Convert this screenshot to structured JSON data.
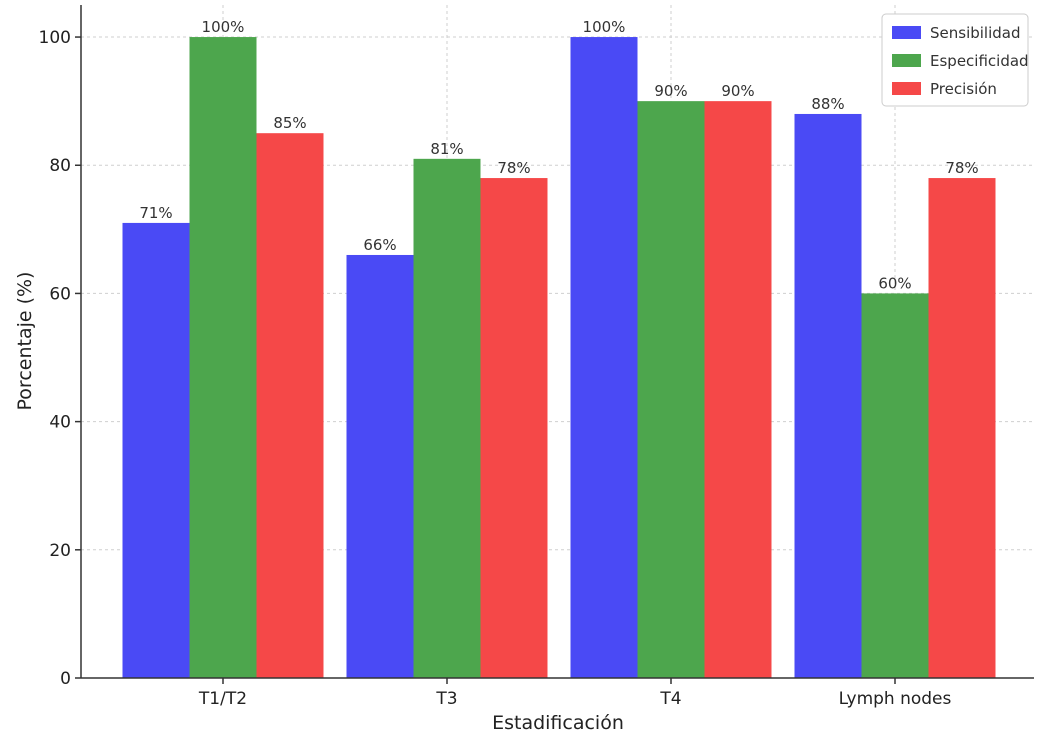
{
  "chart_data": {
    "type": "bar",
    "title": "",
    "xlabel": "Estadificación",
    "ylabel": "Porcentaje (%)",
    "categories": [
      "T1/T2",
      "T3",
      "T4",
      "Lymph nodes"
    ],
    "series": [
      {
        "name": "Sensibilidad",
        "values": [
          71,
          66,
          100,
          88
        ],
        "color": "#4a4af5"
      },
      {
        "name": "Especificidad",
        "values": [
          100,
          81,
          90,
          60
        ],
        "color": "#4da64d"
      },
      {
        "name": "Precisión",
        "values": [
          85,
          78,
          90,
          78
        ],
        "color": "#f54848"
      }
    ],
    "value_labels": [
      [
        "71%",
        "66%",
        "100%",
        "88%"
      ],
      [
        "100%",
        "81%",
        "90%",
        "60%"
      ],
      [
        "85%",
        "78%",
        "90%",
        "78%"
      ]
    ],
    "yticks": [
      0,
      20,
      40,
      60,
      80,
      100
    ],
    "ytick_labels": [
      "0",
      "20",
      "40",
      "60",
      "80",
      "100"
    ],
    "ylim": [
      0,
      105
    ],
    "grid": true,
    "legend_position": "top-right"
  }
}
